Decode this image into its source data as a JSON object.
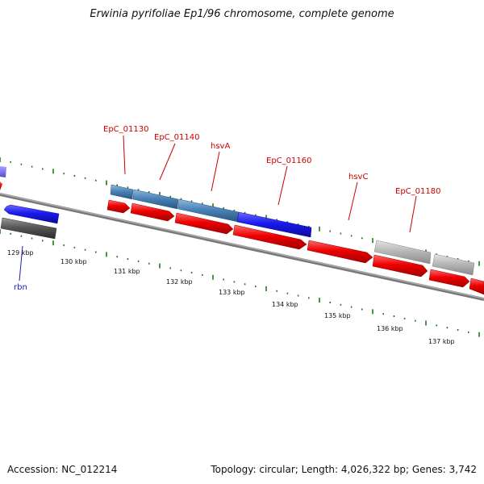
{
  "title": "Erwinia pyrifoliae Ep1/96 chromosome, complete genome",
  "footer": {
    "accession": "Accession: NC_012214",
    "summary": "Topology: circular; Length: 4,026,322 bp; Genes: 3,742"
  },
  "colors": {
    "forward_gene": "#ee0000",
    "reverse_gene_blue": "#1a1aee",
    "reverse_gene_steel": "#4a84b8",
    "gray_gene": "#b8b8b8",
    "dark_gene": "#585858",
    "tick": "#1a7a1a",
    "red_label": "#cc0000",
    "blue_label": "#1a1acc",
    "backbone": "#888888"
  },
  "ticks": [
    {
      "label": "129 kbp"
    },
    {
      "label": "130 kbp"
    },
    {
      "label": "131 kbp"
    },
    {
      "label": "132 kbp"
    },
    {
      "label": "133 kbp"
    },
    {
      "label": "134 kbp"
    },
    {
      "label": "135 kbp"
    },
    {
      "label": "136 kbp"
    },
    {
      "label": "137 kbp"
    }
  ],
  "gene_labels": [
    {
      "name": "EpC_01130",
      "color": "red"
    },
    {
      "name": "EpC_01140",
      "color": "red"
    },
    {
      "name": "hsvA",
      "color": "red"
    },
    {
      "name": "EpC_01160",
      "color": "red"
    },
    {
      "name": "hsvC",
      "color": "red"
    },
    {
      "name": "EpC_01180",
      "color": "red"
    },
    {
      "name": "rbn",
      "color": "blue"
    }
  ]
}
